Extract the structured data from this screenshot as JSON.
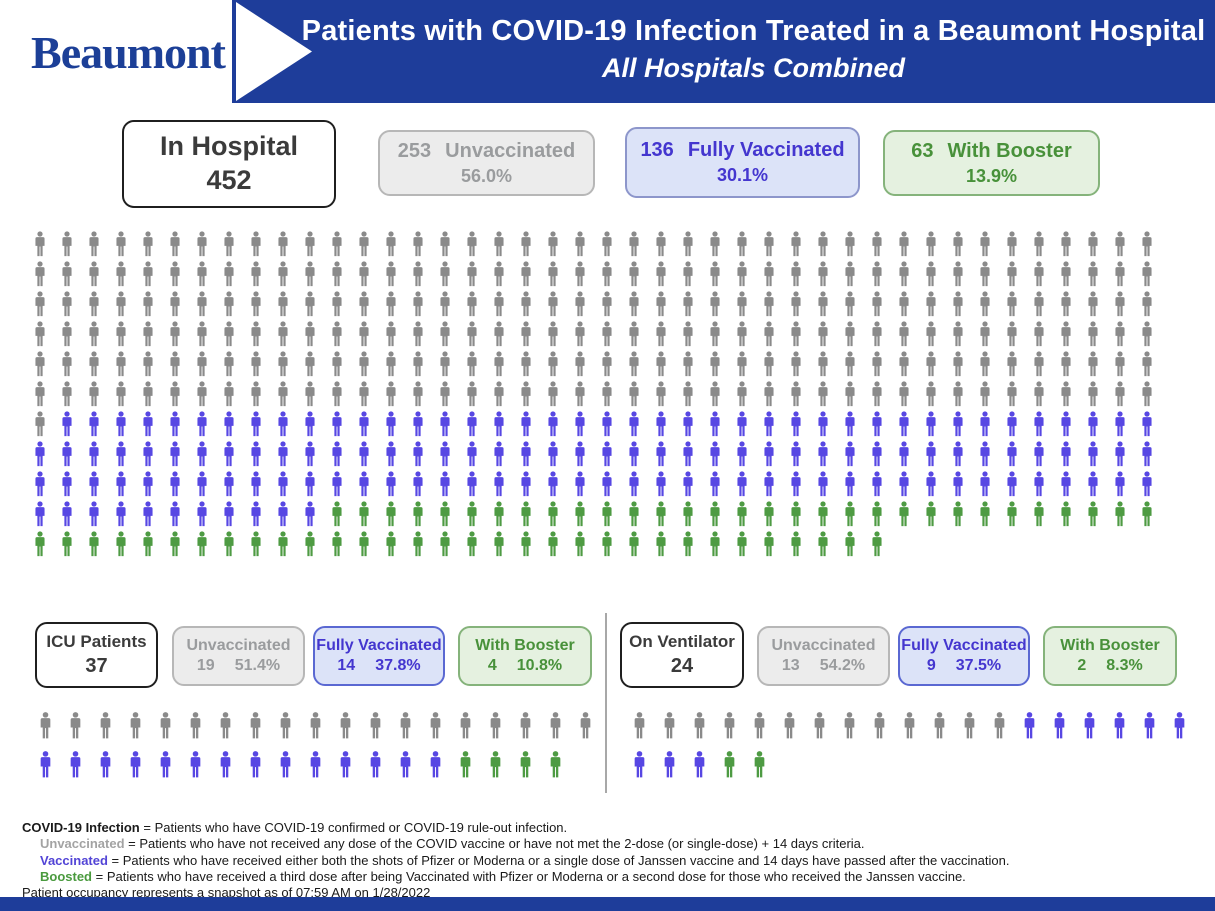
{
  "header": {
    "logo": "Beaumont",
    "title_line1": "Patients with COVID-19 Infection Treated in a Beaumont Hospital",
    "title_line2": "All Hospitals Combined"
  },
  "colors": {
    "banner_blue": "#1e3d9a",
    "unvaccinated": "#8a8a8a",
    "vaccinated": "#5747e3",
    "boosted": "#4e9b43",
    "unvaccinated_text": "#9a9c9e",
    "vaccinated_text": "#4436cf",
    "boosted_text": "#48913a"
  },
  "summary": {
    "total": {
      "label_line1": "In Hospital",
      "value": "452"
    },
    "unvaccinated": {
      "count": "253",
      "label": "Unvaccinated",
      "pct": "56.0%"
    },
    "fully_vaccinated": {
      "count": "136",
      "label": "Fully Vaccinated",
      "pct": "30.1%"
    },
    "with_booster": {
      "count": "63",
      "label": "With Booster",
      "pct": "13.9%"
    }
  },
  "icu": {
    "title": "ICU Patients",
    "total": "37",
    "unvaccinated": {
      "label": "Unvaccinated",
      "count": "19",
      "pct": "51.4%"
    },
    "fully_vaccinated": {
      "label": "Fully Vaccinated",
      "count": "14",
      "pct": "37.8%"
    },
    "with_booster": {
      "label": "With Booster",
      "count": "4",
      "pct": "10.8%"
    }
  },
  "ventilator": {
    "title": "On Ventilator",
    "total": "24",
    "unvaccinated": {
      "label": "Unvaccinated",
      "count": "13",
      "pct": "54.2%"
    },
    "fully_vaccinated": {
      "label": "Fully Vaccinated",
      "count": "9",
      "pct": "37.5%"
    },
    "with_booster": {
      "label": "With Booster",
      "count": "2",
      "pct": "8.3%"
    }
  },
  "chart_data": [
    {
      "type": "pictogram",
      "title": "In Hospital",
      "total": 452,
      "columns": 42,
      "unit": "1 icon = 1 patient",
      "series": [
        {
          "name": "Unvaccinated",
          "count": 253,
          "pct": "56.0%",
          "color_key": "unvaccinated"
        },
        {
          "name": "Fully Vaccinated",
          "count": 136,
          "pct": "30.1%",
          "color_key": "vaccinated"
        },
        {
          "name": "With Booster",
          "count": 63,
          "pct": "13.9%",
          "color_key": "boosted"
        }
      ]
    },
    {
      "type": "pictogram",
      "title": "ICU Patients",
      "total": 37,
      "columns": 19,
      "unit": "1 icon = 1 patient",
      "series": [
        {
          "name": "Unvaccinated",
          "count": 19,
          "pct": "51.4%",
          "color_key": "unvaccinated"
        },
        {
          "name": "Fully Vaccinated",
          "count": 14,
          "pct": "37.8%",
          "color_key": "vaccinated"
        },
        {
          "name": "With Booster",
          "count": 4,
          "pct": "10.8%",
          "color_key": "boosted"
        }
      ]
    },
    {
      "type": "pictogram",
      "title": "On Ventilator",
      "total": 24,
      "columns": 19,
      "unit": "1 icon = 1 patient",
      "series": [
        {
          "name": "Unvaccinated",
          "count": 13,
          "pct": "54.2%",
          "color_key": "unvaccinated"
        },
        {
          "name": "Fully Vaccinated",
          "count": 9,
          "pct": "37.5%",
          "color_key": "vaccinated"
        },
        {
          "name": "With Booster",
          "count": 2,
          "pct": "8.3%",
          "color_key": "boosted"
        }
      ]
    }
  ],
  "footnotes": [
    {
      "term": "COVID-19 Infection",
      "rest": " = Patients who have COVID-19 confirmed or COVID-19 rule-out infection."
    },
    {
      "term": "Unvaccinated",
      "rest": " = Patients who have not received any dose of the COVID vaccine or have not met the 2-dose (or single-dose) + 14 days criteria."
    },
    {
      "term": "Vaccinated",
      "rest": " = Patients who have received either both the shots of Pfizer or Moderna or a single dose of Janssen vaccine and 14 days have passed after the vaccination."
    },
    {
      "term": "Boosted",
      "rest": " = Patients who have received a third dose after being Vaccinated with Pfizer or Moderna or a second dose for those who received the Janssen vaccine."
    }
  ],
  "snapshot_note": "Patient occupancy represents a snapshot as of 07:59 AM on 1/28/2022"
}
